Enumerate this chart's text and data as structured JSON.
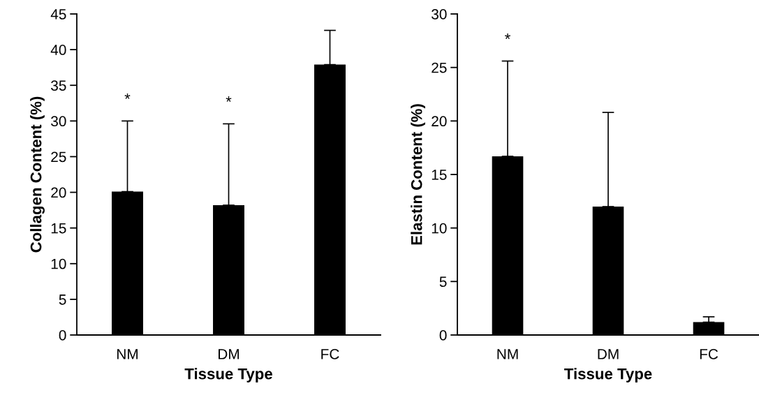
{
  "chart_data": [
    {
      "type": "bar",
      "categories": [
        "NM",
        "DM",
        "FC"
      ],
      "values": [
        20.1,
        18.2,
        37.9
      ],
      "color": "#000000",
      "errors": [
        [
          20.1,
          30.0
        ],
        [
          18.2,
          29.6
        ],
        [
          37.9,
          42.7
        ]
      ],
      "xlabel": "Tissue Type",
      "ylabel": "Collagen Content (%)",
      "ylim": [
        0,
        45
      ],
      "yticks": [
        0,
        5,
        10,
        15,
        20,
        25,
        30,
        35,
        40,
        45
      ],
      "grid": false,
      "legend": false,
      "annotations": [
        {
          "text": "*",
          "x": "NM",
          "y": 30.0
        },
        {
          "text": "*",
          "x": "DM",
          "y": 29.6
        }
      ]
    },
    {
      "type": "bar",
      "categories": [
        "NM",
        "DM",
        "FC"
      ],
      "values": [
        16.7,
        12.0,
        1.2
      ],
      "color": "#000000",
      "errors": [
        [
          16.7,
          25.6
        ],
        [
          12.0,
          20.8
        ],
        [
          1.2,
          1.7
        ]
      ],
      "xlabel": "Tissue Type",
      "ylabel": "Elastin Content (%)",
      "ylim": [
        0,
        30
      ],
      "yticks": [
        0,
        5,
        10,
        15,
        20,
        25,
        30
      ],
      "grid": false,
      "legend": false,
      "annotations": [
        {
          "text": "*",
          "x": "NM",
          "y": 25.6
        }
      ]
    }
  ]
}
